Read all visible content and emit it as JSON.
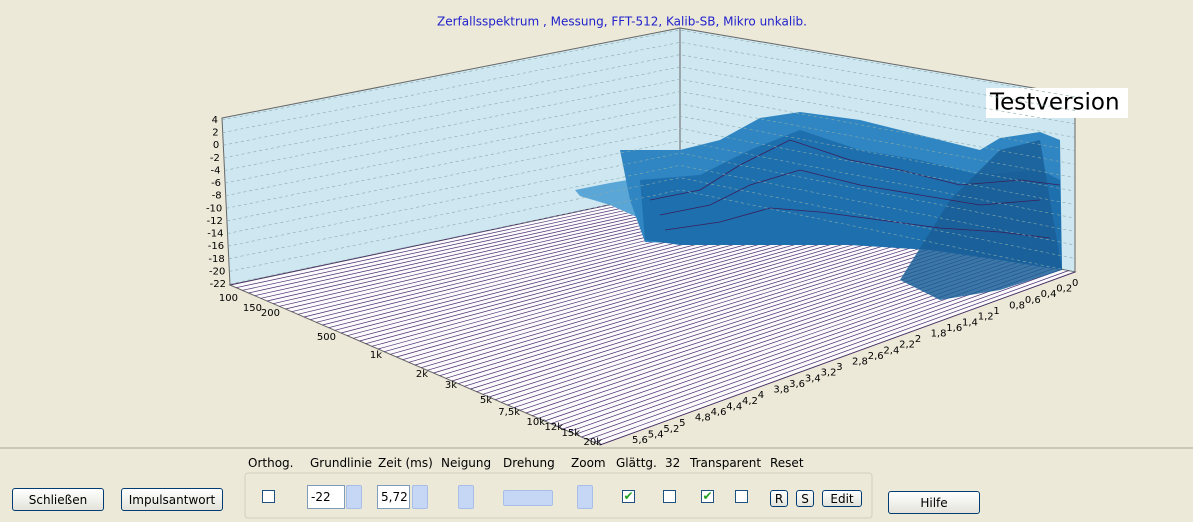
{
  "window": {
    "chart": {
      "title": "Zerfallsspektrum , Messung, FFT-512, Kalib-SB, Mikro unkalib.",
      "watermark": "Testversion",
      "level_ticks": [
        4,
        2,
        0,
        -2,
        -4,
        -6,
        -8,
        -10,
        -12,
        -14,
        -16,
        -18,
        -20,
        -22
      ],
      "frequency_ticks": [
        "100",
        "150",
        "200",
        "500",
        "1k",
        "2k",
        "3k",
        "5k",
        "7,5k",
        "10k",
        "12k",
        "15k",
        "20k"
      ],
      "time_ticks": [
        "0",
        "0,2",
        "0,4",
        "0,6",
        "0,8",
        "1",
        "1,2",
        "1,4",
        "1,6",
        "1,8",
        "2",
        "2,2",
        "2,4",
        "2,6",
        "2,8",
        "3",
        "3,2",
        "3,4",
        "3,6",
        "3,8",
        "4",
        "4,2",
        "4,4",
        "4,6",
        "4,8",
        "5",
        "5,2",
        "5,4",
        "5,6"
      ]
    },
    "controls": {
      "labels": [
        "Orthog.",
        "Grundlinie",
        "Zeit (ms)",
        "Neigung",
        "Drehung",
        "Zoom",
        "Glättg.",
        "32",
        "Transparent",
        "Reset"
      ],
      "baseline": "-22",
      "time": "5,72",
      "buttons": {
        "close": "Schließen",
        "impulse": "Impulsantwort",
        "help": "Hilfe",
        "r": "R",
        "s": "S",
        "edit": "Edit"
      }
    }
  }
}
